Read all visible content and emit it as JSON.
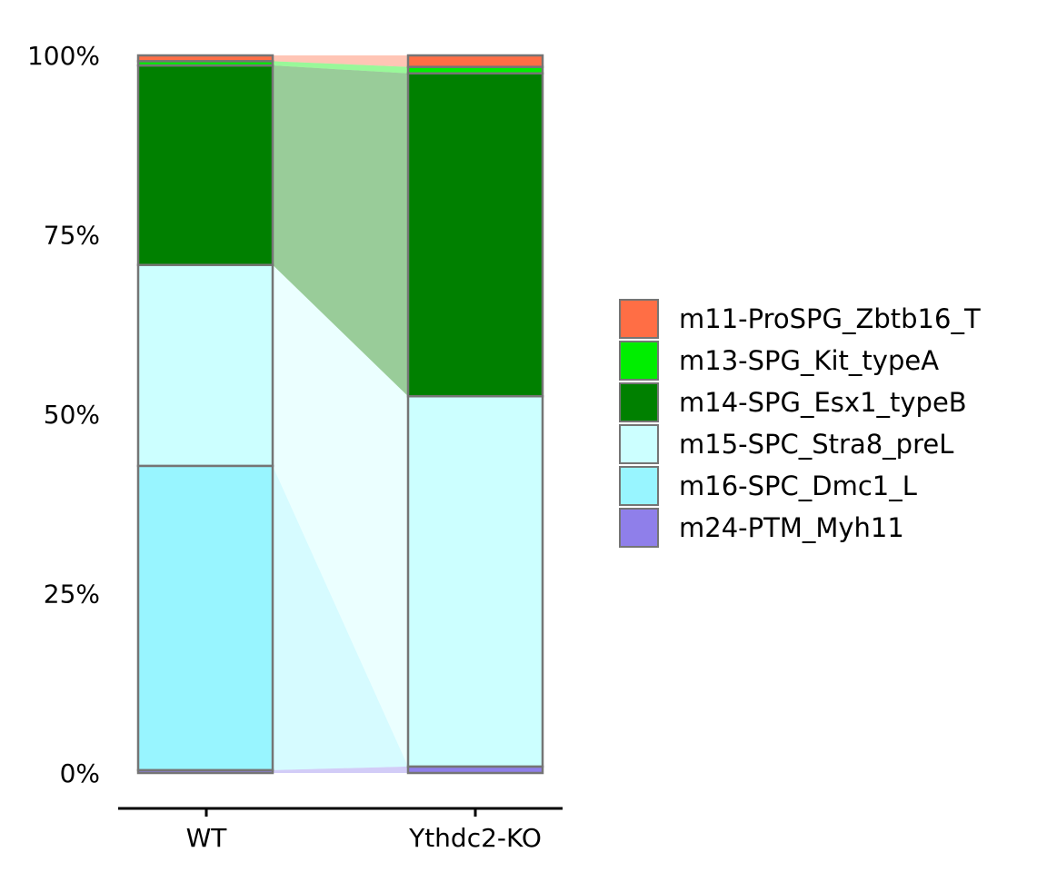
{
  "chart_data": {
    "type": "bar",
    "stacked": true,
    "normalized": true,
    "flows_between_bars": true,
    "categories": [
      "WT",
      "Ythdc2-KO"
    ],
    "ylim": [
      0,
      1
    ],
    "yticks": [
      0,
      0.25,
      0.5,
      0.75,
      1.0
    ],
    "ytick_labels": [
      "0%",
      "25%",
      "50%",
      "75%",
      "100%"
    ],
    "grid": false,
    "legend_position": "right",
    "series": [
      {
        "name": "m24-PTM_Myh11",
        "color": "#8F7FEA",
        "values": [
          0.004,
          0.009
        ]
      },
      {
        "name": "m16-SPC_Dmc1_L",
        "color": "#98F5FF",
        "values": [
          0.424,
          0.0
        ]
      },
      {
        "name": "m15-SPC_Stra8_preL",
        "color": "#CCFFFF",
        "values": [
          0.28,
          0.516
        ]
      },
      {
        "name": "m14-SPG_Esx1_typeB",
        "color": "#008000",
        "values": [
          0.278,
          0.45
        ]
      },
      {
        "name": "m13-SPG_Kit_typeA",
        "color": "#00EE00",
        "values": [
          0.006,
          0.009
        ]
      },
      {
        "name": "m11-ProSPG_Zbtb16_T",
        "color": "#FF6E45",
        "values": [
          0.008,
          0.016
        ]
      }
    ],
    "legend_order": [
      "m11-ProSPG_Zbtb16_T",
      "m13-SPG_Kit_typeA",
      "m14-SPG_Esx1_typeB",
      "m15-SPC_Stra8_preL",
      "m16-SPC_Dmc1_L",
      "m24-PTM_Myh11"
    ]
  }
}
